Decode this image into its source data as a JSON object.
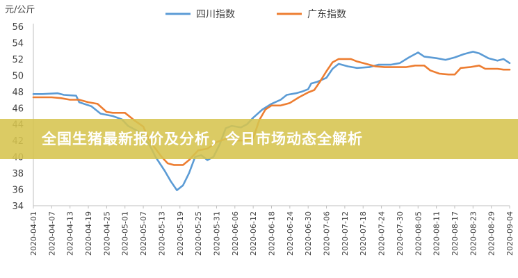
{
  "banner": {
    "headline": "全国生猪最新报价及分析，今日市场动态全解析"
  },
  "chart_data": {
    "type": "line",
    "ylabel": "元/公斤",
    "ylim": [
      34,
      56
    ],
    "yticks": [
      34,
      36,
      38,
      40,
      42,
      44,
      46,
      48,
      50,
      52,
      54,
      56
    ],
    "legend_position": "top",
    "grid": false,
    "categories": [
      "2020-04-01",
      "2020-04-02",
      "2020-04-03",
      "2020-04-04",
      "2020-04-05",
      "2020-04-06",
      "2020-04-07",
      "2020-04-08",
      "2020-04-09",
      "2020-04-10",
      "2020-04-11",
      "2020-04-12",
      "2020-04-13",
      "2020-04-14",
      "2020-04-15",
      "2020-04-16",
      "2020-04-17",
      "2020-04-18",
      "2020-04-19",
      "2020-04-20",
      "2020-04-21",
      "2020-04-22",
      "2020-04-23",
      "2020-04-24",
      "2020-04-25",
      "2020-04-26",
      "2020-04-27",
      "2020-04-28",
      "2020-04-29",
      "2020-04-30",
      "2020-05-01",
      "2020-05-02",
      "2020-05-03",
      "2020-05-04",
      "2020-05-05",
      "2020-05-06",
      "2020-05-07",
      "2020-05-08",
      "2020-05-09",
      "2020-05-10",
      "2020-05-11",
      "2020-05-12",
      "2020-05-13",
      "2020-05-14",
      "2020-05-15",
      "2020-05-16",
      "2020-05-17",
      "2020-05-18",
      "2020-05-19",
      "2020-05-20",
      "2020-05-21",
      "2020-05-22",
      "2020-05-23",
      "2020-05-24",
      "2020-05-25",
      "2020-05-26",
      "2020-05-27",
      "2020-05-28",
      "2020-05-29",
      "2020-05-30",
      "2020-05-31",
      "2020-06-01",
      "2020-06-02",
      "2020-06-03",
      "2020-06-04",
      "2020-06-05",
      "2020-06-06",
      "2020-06-07",
      "2020-06-08",
      "2020-06-09",
      "2020-06-10",
      "2020-06-11",
      "2020-06-12",
      "2020-06-13",
      "2020-06-14",
      "2020-06-15",
      "2020-06-16",
      "2020-06-17",
      "2020-06-18",
      "2020-06-19",
      "2020-06-20",
      "2020-06-21",
      "2020-06-22",
      "2020-06-23",
      "2020-06-24",
      "2020-06-25",
      "2020-06-26",
      "2020-06-27",
      "2020-06-28",
      "2020-06-29",
      "2020-06-30",
      "2020-07-01",
      "2020-07-02",
      "2020-07-03",
      "2020-07-04",
      "2020-07-05",
      "2020-07-06",
      "2020-07-07",
      "2020-07-08",
      "2020-07-09",
      "2020-07-10",
      "2020-07-11",
      "2020-07-12",
      "2020-07-13",
      "2020-07-14",
      "2020-07-15",
      "2020-07-16",
      "2020-07-17",
      "2020-07-18",
      "2020-07-19",
      "2020-07-20",
      "2020-07-21",
      "2020-07-22",
      "2020-07-23",
      "2020-07-24",
      "2020-07-25",
      "2020-07-26",
      "2020-07-27",
      "2020-07-28",
      "2020-07-29",
      "2020-07-30",
      "2020-07-31",
      "2020-08-01",
      "2020-08-02",
      "2020-08-03",
      "2020-08-04",
      "2020-08-05",
      "2020-08-06",
      "2020-08-07",
      "2020-08-08",
      "2020-08-09",
      "2020-08-10",
      "2020-08-11",
      "2020-08-12",
      "2020-08-13",
      "2020-08-14",
      "2020-08-15",
      "2020-08-16",
      "2020-08-17",
      "2020-08-18",
      "2020-08-19",
      "2020-08-20",
      "2020-08-21",
      "2020-08-22",
      "2020-08-23",
      "2020-08-24",
      "2020-08-25",
      "2020-08-26",
      "2020-08-27",
      "2020-08-28",
      "2020-08-29",
      "2020-08-30",
      "2020-08-31",
      "2020-09-01",
      "2020-09-02",
      "2020-09-03",
      "2020-09-04"
    ],
    "xtick_labels": [
      "2020-04-01",
      "2020-04-07",
      "2020-04-13",
      "2020-04-19",
      "2020-04-25",
      "2020-05-01",
      "2020-05-07",
      "2020-05-13",
      "2020-05-19",
      "2020-05-25",
      "2020-05-31",
      "2020-06-06",
      "2020-06-12",
      "2020-06-18",
      "2020-06-24",
      "2020-06-30",
      "2020-07-06",
      "2020-07-12",
      "2020-07-18",
      "2020-07-24",
      "2020-07-30",
      "2020-08-05",
      "2020-08-11",
      "2020-08-17",
      "2020-08-23",
      "2020-08-29",
      "2020-09-04"
    ],
    "series": [
      {
        "name": "四川指数",
        "color": "#5b9bd5",
        "points": [
          [
            "2020-04-01",
            47.7
          ],
          [
            "2020-04-04",
            47.7
          ],
          [
            "2020-04-09",
            47.8
          ],
          [
            "2020-04-11",
            47.6
          ],
          [
            "2020-04-15",
            47.5
          ],
          [
            "2020-04-16",
            46.7
          ],
          [
            "2020-04-20",
            46.2
          ],
          [
            "2020-04-23",
            45.3
          ],
          [
            "2020-04-27",
            45.0
          ],
          [
            "2020-04-30",
            44.6
          ],
          [
            "2020-05-02",
            43.8
          ],
          [
            "2020-05-06",
            43.0
          ],
          [
            "2020-05-09",
            41.5
          ],
          [
            "2020-05-11",
            40.0
          ],
          [
            "2020-05-14",
            38.3
          ],
          [
            "2020-05-16",
            37.0
          ],
          [
            "2020-05-18",
            35.9
          ],
          [
            "2020-05-20",
            36.5
          ],
          [
            "2020-05-22",
            38.0
          ],
          [
            "2020-05-24",
            40.0
          ],
          [
            "2020-05-26",
            40.2
          ],
          [
            "2020-05-28",
            39.6
          ],
          [
            "2020-05-30",
            40.0
          ],
          [
            "2020-06-01",
            41.5
          ],
          [
            "2020-06-03",
            43.5
          ],
          [
            "2020-06-05",
            43.8
          ],
          [
            "2020-06-08",
            43.6
          ],
          [
            "2020-06-10",
            44.0
          ],
          [
            "2020-06-12",
            44.8
          ],
          [
            "2020-06-15",
            45.8
          ],
          [
            "2020-06-18",
            46.5
          ],
          [
            "2020-06-21",
            47.0
          ],
          [
            "2020-06-23",
            47.6
          ],
          [
            "2020-06-26",
            47.8
          ],
          [
            "2020-06-28",
            48.0
          ],
          [
            "2020-06-30",
            48.3
          ],
          [
            "2020-07-01",
            49.0
          ],
          [
            "2020-07-03",
            49.2
          ],
          [
            "2020-07-06",
            49.7
          ],
          [
            "2020-07-08",
            50.8
          ],
          [
            "2020-07-10",
            51.4
          ],
          [
            "2020-07-13",
            51.1
          ],
          [
            "2020-07-16",
            50.9
          ],
          [
            "2020-07-20",
            51.0
          ],
          [
            "2020-07-23",
            51.3
          ],
          [
            "2020-07-27",
            51.3
          ],
          [
            "2020-07-30",
            51.5
          ],
          [
            "2020-08-02",
            52.2
          ],
          [
            "2020-08-05",
            52.8
          ],
          [
            "2020-08-07",
            52.3
          ],
          [
            "2020-08-11",
            52.1
          ],
          [
            "2020-08-14",
            51.9
          ],
          [
            "2020-08-17",
            52.2
          ],
          [
            "2020-08-20",
            52.6
          ],
          [
            "2020-08-23",
            52.9
          ],
          [
            "2020-08-25",
            52.7
          ],
          [
            "2020-08-28",
            52.1
          ],
          [
            "2020-08-31",
            51.8
          ],
          [
            "2020-09-02",
            52.0
          ],
          [
            "2020-09-04",
            51.5
          ]
        ]
      },
      {
        "name": "广东指数",
        "color": "#ed7d31",
        "points": [
          [
            "2020-04-01",
            47.3
          ],
          [
            "2020-04-07",
            47.3
          ],
          [
            "2020-04-10",
            47.2
          ],
          [
            "2020-04-13",
            47.0
          ],
          [
            "2020-04-16",
            47.0
          ],
          [
            "2020-04-19",
            46.7
          ],
          [
            "2020-04-22",
            46.5
          ],
          [
            "2020-04-25",
            45.5
          ],
          [
            "2020-04-27",
            45.4
          ],
          [
            "2020-05-01",
            45.4
          ],
          [
            "2020-05-04",
            44.5
          ],
          [
            "2020-05-07",
            43.7
          ],
          [
            "2020-05-09",
            42.0
          ],
          [
            "2020-05-11",
            41.0
          ],
          [
            "2020-05-13",
            40.0
          ],
          [
            "2020-05-15",
            39.2
          ],
          [
            "2020-05-17",
            39.0
          ],
          [
            "2020-05-20",
            39.0
          ],
          [
            "2020-05-22",
            39.6
          ],
          [
            "2020-05-25",
            40.8
          ],
          [
            "2020-05-28",
            41.0
          ],
          [
            "2020-05-31",
            41.8
          ],
          [
            "2020-06-03",
            42.2
          ],
          [
            "2020-06-06",
            42.0
          ],
          [
            "2020-06-09",
            42.0
          ],
          [
            "2020-06-12",
            42.3
          ],
          [
            "2020-06-14",
            44.5
          ],
          [
            "2020-06-16",
            45.8
          ],
          [
            "2020-06-18",
            46.3
          ],
          [
            "2020-06-21",
            46.3
          ],
          [
            "2020-06-24",
            46.6
          ],
          [
            "2020-06-27",
            47.3
          ],
          [
            "2020-06-30",
            47.9
          ],
          [
            "2020-07-02",
            48.2
          ],
          [
            "2020-07-04",
            49.3
          ],
          [
            "2020-07-06",
            50.5
          ],
          [
            "2020-07-08",
            51.6
          ],
          [
            "2020-07-10",
            52.0
          ],
          [
            "2020-07-14",
            52.0
          ],
          [
            "2020-07-16",
            51.7
          ],
          [
            "2020-07-19",
            51.4
          ],
          [
            "2020-07-22",
            51.1
          ],
          [
            "2020-07-25",
            51.0
          ],
          [
            "2020-08-01",
            51.0
          ],
          [
            "2020-08-04",
            51.2
          ],
          [
            "2020-08-07",
            51.2
          ],
          [
            "2020-08-09",
            50.6
          ],
          [
            "2020-08-12",
            50.2
          ],
          [
            "2020-08-15",
            50.1
          ],
          [
            "2020-08-17",
            50.1
          ],
          [
            "2020-08-19",
            50.9
          ],
          [
            "2020-08-22",
            51.0
          ],
          [
            "2020-08-25",
            51.2
          ],
          [
            "2020-08-27",
            50.8
          ],
          [
            "2020-08-31",
            50.8
          ],
          [
            "2020-09-02",
            50.7
          ],
          [
            "2020-09-04",
            50.7
          ]
        ]
      }
    ]
  }
}
